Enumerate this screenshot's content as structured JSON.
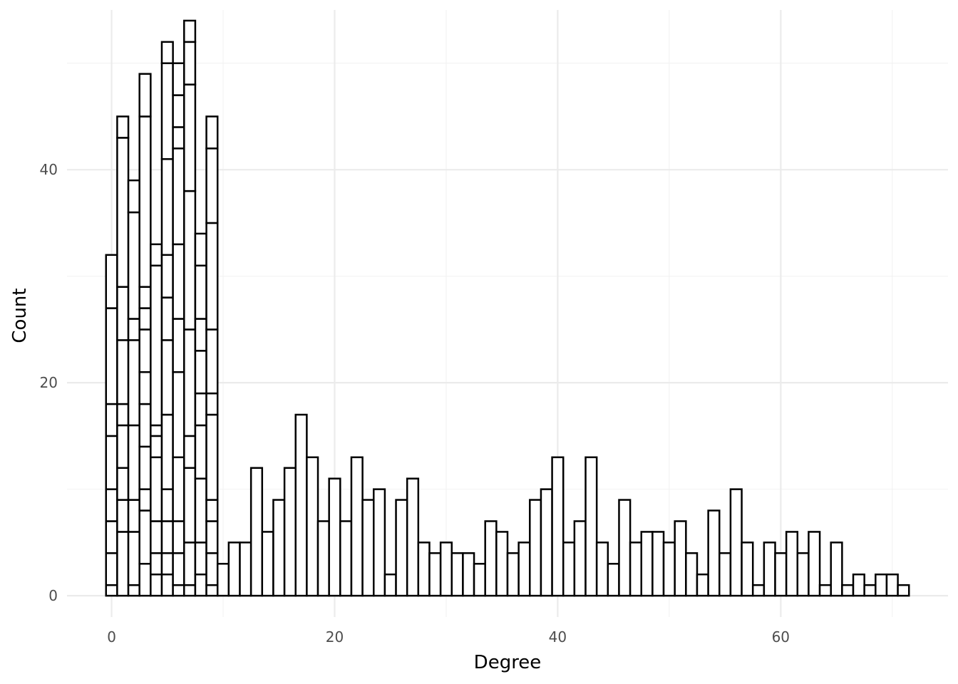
{
  "chart_data": {
    "type": "bar",
    "subtype": "stacked histogram",
    "title": "",
    "xlabel": "Degree",
    "ylabel": "Count",
    "xlim": [
      -4,
      75
    ],
    "ylim": [
      -2,
      55
    ],
    "x_ticks": [
      0,
      20,
      40,
      60
    ],
    "y_ticks": [
      0,
      20,
      40
    ],
    "x_tick_labels": [
      "0",
      "20",
      "40",
      "60"
    ],
    "y_tick_labels": [
      "0",
      "20",
      "40"
    ],
    "bin_width": 1,
    "grid": true,
    "bar_fill": "#ffffff",
    "bar_outline": "#000000",
    "stacked_bins": [
      {
        "x": 0,
        "segments": [
          1,
          3,
          3,
          3,
          5,
          3,
          9,
          5
        ]
      },
      {
        "x": 1,
        "segments": [
          6,
          3,
          3,
          4,
          2,
          6,
          5,
          14,
          2
        ]
      },
      {
        "x": 2,
        "segments": [
          1,
          5,
          3,
          7,
          8,
          2,
          10,
          3
        ]
      },
      {
        "x": 3,
        "segments": [
          3,
          5,
          2,
          4,
          4,
          3,
          4,
          2,
          2,
          16,
          4
        ]
      },
      {
        "x": 4,
        "segments": [
          2,
          2,
          3,
          6,
          2,
          1,
          15,
          2
        ]
      },
      {
        "x": 5,
        "segments": [
          2,
          2,
          3,
          3,
          7,
          7,
          4,
          4,
          9,
          9,
          2
        ]
      },
      {
        "x": 6,
        "segments": [
          1,
          3,
          3,
          6,
          8,
          5,
          7,
          9,
          2,
          3,
          3
        ]
      },
      {
        "x": 7,
        "segments": [
          1,
          4,
          7,
          3,
          10,
          13,
          10,
          4,
          2
        ]
      },
      {
        "x": 8,
        "segments": [
          2,
          3,
          6,
          5,
          3,
          4,
          3,
          5,
          3
        ]
      },
      {
        "x": 9,
        "segments": [
          1,
          3,
          3,
          2,
          8,
          2,
          6,
          10,
          7,
          3
        ]
      }
    ],
    "x": [
      10,
      11,
      12,
      13,
      14,
      15,
      16,
      17,
      18,
      19,
      20,
      21,
      22,
      23,
      24,
      25,
      26,
      27,
      28,
      29,
      30,
      31,
      32,
      33,
      34,
      35,
      36,
      37,
      38,
      39,
      40,
      41,
      42,
      43,
      44,
      45,
      46,
      47,
      48,
      49,
      50,
      51,
      52,
      53,
      54,
      55,
      56,
      57,
      58,
      59,
      60,
      61,
      62,
      63,
      64,
      65,
      66,
      67,
      68,
      69,
      70,
      71
    ],
    "values": [
      3,
      5,
      5,
      12,
      6,
      9,
      12,
      17,
      13,
      7,
      11,
      7,
      13,
      9,
      10,
      2,
      9,
      11,
      5,
      4,
      5,
      4,
      4,
      3,
      7,
      6,
      4,
      5,
      9,
      10,
      13,
      5,
      7,
      13,
      5,
      3,
      9,
      5,
      6,
      6,
      5,
      7,
      4,
      2,
      8,
      4,
      10,
      5,
      1,
      5,
      4,
      6,
      4,
      6,
      1,
      5,
      1,
      2,
      1,
      2,
      2,
      1
    ]
  }
}
